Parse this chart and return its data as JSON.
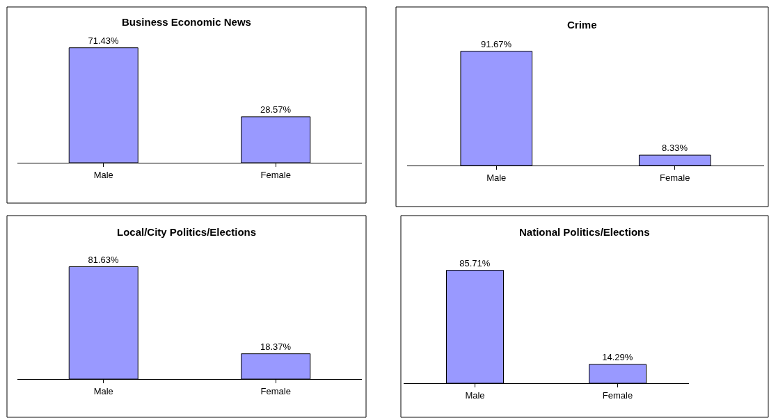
{
  "chart_data": [
    {
      "type": "bar",
      "title": "Business Economic News",
      "categories": [
        "Male",
        "Female"
      ],
      "values": [
        71.43,
        28.57
      ],
      "value_labels": [
        "71.43%",
        "28.57%"
      ],
      "color": "#9999ff"
    },
    {
      "type": "bar",
      "title": "Crime",
      "categories": [
        "Male",
        "Female"
      ],
      "values": [
        91.67,
        8.33
      ],
      "value_labels": [
        "91.67%",
        "8.33%"
      ],
      "color": "#9999ff"
    },
    {
      "type": "bar",
      "title": "Local/City Politics/Elections",
      "categories": [
        "Male",
        "Female"
      ],
      "values": [
        81.63,
        18.37
      ],
      "value_labels": [
        "81.63%",
        "18.37%"
      ],
      "color": "#9999ff"
    },
    {
      "type": "bar",
      "title": "National Politics/Elections",
      "categories": [
        "Male",
        "Female"
      ],
      "values": [
        85.71,
        14.29
      ],
      "value_labels": [
        "85.71%",
        "14.29%"
      ],
      "color": "#9999ff"
    }
  ]
}
